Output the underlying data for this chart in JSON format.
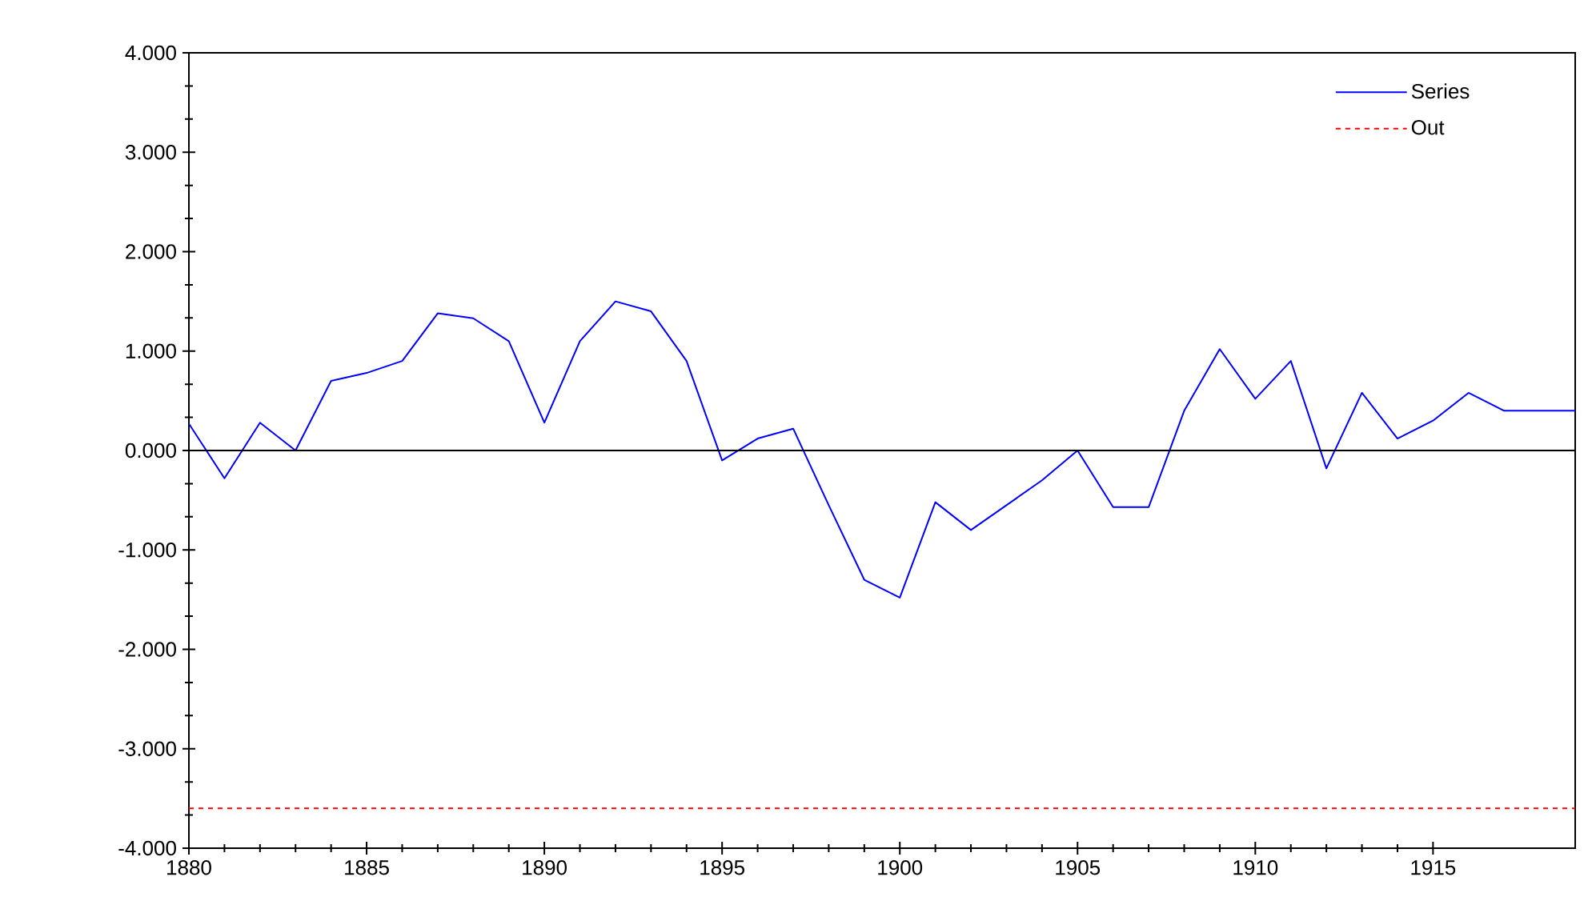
{
  "chart_data": {
    "type": "line",
    "x": [
      1880,
      1881,
      1882,
      1883,
      1884,
      1885,
      1886,
      1887,
      1888,
      1889,
      1890,
      1891,
      1892,
      1893,
      1894,
      1895,
      1896,
      1897,
      1898,
      1899,
      1900,
      1901,
      1902,
      1903,
      1904,
      1905,
      1906,
      1907,
      1908,
      1909,
      1910,
      1911,
      1912,
      1913,
      1914,
      1915,
      1916,
      1917,
      1918,
      1919
    ],
    "series": [
      {
        "name": "Series",
        "color": "#0000ff",
        "line_style": "solid",
        "values": [
          0.27,
          -0.28,
          0.28,
          0.0,
          0.7,
          0.78,
          0.9,
          1.38,
          1.33,
          1.1,
          0.28,
          1.1,
          1.5,
          1.4,
          0.9,
          -0.1,
          0.12,
          0.22,
          -0.55,
          -1.3,
          -1.48,
          -0.52,
          -0.8,
          -0.55,
          -0.3,
          0.0,
          -0.57,
          -0.57,
          0.4,
          1.02,
          0.52,
          0.9,
          -0.18,
          0.58,
          0.12,
          0.3,
          0.58,
          0.4,
          0.4,
          0.4
        ]
      },
      {
        "name": "Out",
        "color": "#ff0000",
        "line_style": "dashed",
        "x": [
          1880,
          1919
        ],
        "values": [
          -3.6,
          -3.6
        ]
      }
    ],
    "xlim": [
      1880,
      1919
    ],
    "ylim": [
      -4,
      4
    ],
    "xticks": [
      1880,
      1885,
      1890,
      1895,
      1900,
      1905,
      1910,
      1915
    ],
    "yticks": [
      {
        "value": -4,
        "label": "-4.000"
      },
      {
        "value": -3,
        "label": "-3.000"
      },
      {
        "value": -2,
        "label": "-2.000"
      },
      {
        "value": -1,
        "label": "-1.000"
      },
      {
        "value": 0,
        "label": "0.000"
      },
      {
        "value": 1,
        "label": "1.000"
      },
      {
        "value": 2,
        "label": "2.000"
      },
      {
        "value": 3,
        "label": "3.000"
      },
      {
        "value": 4,
        "label": "4.000"
      }
    ],
    "ref_lines": [
      {
        "axis": "y",
        "value": 0,
        "color": "#000000"
      }
    ],
    "legend": "top right",
    "grid": false,
    "marker": "none"
  }
}
